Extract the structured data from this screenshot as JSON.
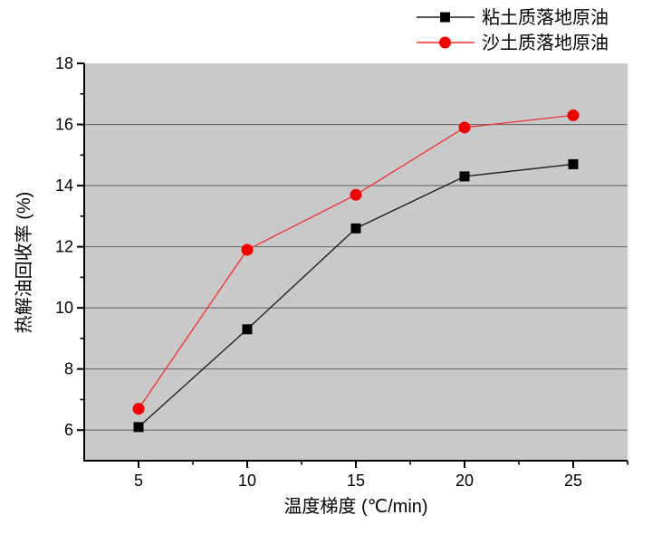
{
  "chart_data": {
    "type": "line",
    "title": "",
    "x": [
      5,
      10,
      15,
      20,
      25
    ],
    "series": [
      {
        "name": "粘土质落地原油",
        "values": [
          6.1,
          9.3,
          12.6,
          14.3,
          14.7
        ],
        "color": "#000000",
        "line_color": "#1c1c1c",
        "marker": "square"
      },
      {
        "name": "沙土质落地原油",
        "values": [
          6.7,
          11.9,
          13.7,
          15.9,
          16.3
        ],
        "color": "#f40000",
        "line_color": "#f03030",
        "marker": "circle"
      }
    ],
    "xlabel": "温度梯度 (℃/min)",
    "ylabel": "热解油回收率 (%)",
    "xlim": [
      2.5,
      27.5
    ],
    "ylim": [
      5,
      18
    ],
    "x_major_ticks": [
      5,
      10,
      15,
      20,
      25
    ],
    "x_minor_ticks": [
      7.5,
      12.5,
      17.5,
      22.5,
      27.5
    ],
    "y_major_ticks": [
      6,
      8,
      10,
      12,
      14,
      16,
      18
    ],
    "y_minor_ticks": [
      7,
      9,
      11,
      13,
      15,
      17
    ],
    "grid": "horizontal-major-only",
    "legend_position": "top-right-outside",
    "colors": {
      "plot_bg": "#c9c9c9",
      "grid": "#6b6b6b",
      "axis": "#000000",
      "page_bg": "#ffffff"
    }
  }
}
